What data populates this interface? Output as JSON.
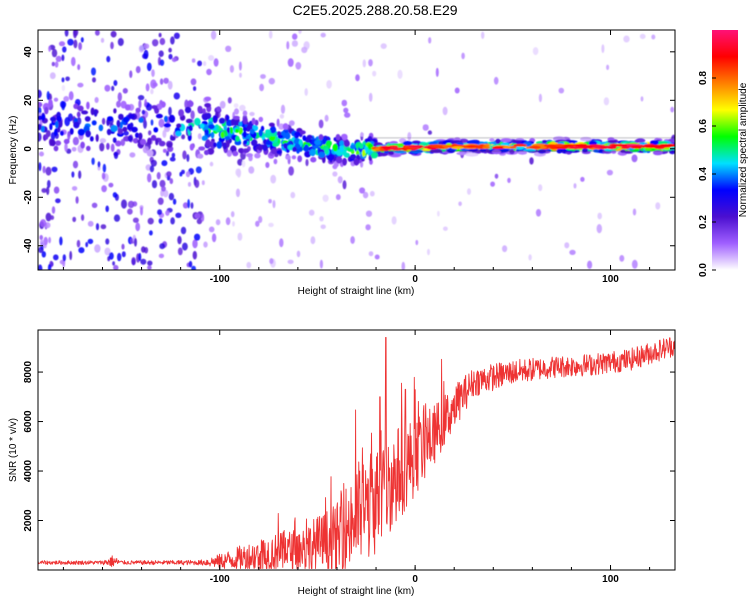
{
  "figure_title": "C2E5.2025.288.20.58.E29",
  "chart_data": [
    {
      "type": "heatmap",
      "title": "C2E5.2025.288.20.58.E29",
      "xlabel": "Height of straight line (km)",
      "ylabel": "Frequency (Hz)",
      "xlim": [
        -193,
        133
      ],
      "ylim": [
        -50,
        49
      ],
      "xticks": [
        -100,
        0,
        100
      ],
      "yticks": [
        -40,
        -20,
        0,
        20,
        40
      ],
      "xtick_labels": [
        "-100",
        "0",
        "100"
      ],
      "ytick_labels": [
        "-40",
        "-20",
        "0",
        "20",
        "40"
      ],
      "colorbar": {
        "label": "Normalized spectral amplitude",
        "range": [
          0,
          1
        ],
        "ticks": [
          0.0,
          0.2,
          0.4,
          0.6,
          0.8
        ],
        "tick_labels": [
          "0.0",
          "0.2",
          "0.4",
          "0.6",
          "0.8"
        ],
        "colors": [
          "#ffffff",
          "#a060ff",
          "#4b0fd0",
          "#0000ff",
          "#00e0ff",
          "#00ff00",
          "#ffff00",
          "#ff7f00",
          "#ff0000",
          "#ff1177"
        ]
      },
      "ridge": [
        {
          "x": -160,
          "f": 9,
          "a": 0.35
        },
        {
          "x": -130,
          "f": 9,
          "a": 0.38
        },
        {
          "x": -110,
          "f": 9,
          "a": 0.45
        },
        {
          "x": -100,
          "f": 8,
          "a": 0.55
        },
        {
          "x": -90,
          "f": 6,
          "a": 0.55
        },
        {
          "x": -80,
          "f": 5,
          "a": 0.5
        },
        {
          "x": -65,
          "f": 3,
          "a": 0.5
        },
        {
          "x": -50,
          "f": 1,
          "a": 0.55
        },
        {
          "x": -35,
          "f": -1,
          "a": 0.55
        },
        {
          "x": -20,
          "f": 0,
          "a": 0.75
        },
        {
          "x": 0,
          "f": 0.5,
          "a": 0.85
        },
        {
          "x": 20,
          "f": 1,
          "a": 0.7
        },
        {
          "x": 50,
          "f": 1,
          "a": 0.75
        },
        {
          "x": 80,
          "f": 1,
          "a": 0.8
        },
        {
          "x": 110,
          "f": 1,
          "a": 0.85
        },
        {
          "x": 133,
          "f": 1,
          "a": 0.8
        }
      ]
    },
    {
      "type": "line",
      "xlabel": "Height of straight line (km)",
      "ylabel": "SNR (10 * v/v)",
      "xlim": [
        -193,
        133
      ],
      "ylim": [
        0,
        9700
      ],
      "xticks": [
        -100,
        0,
        100
      ],
      "yticks": [
        2000,
        4000,
        6000,
        8000
      ],
      "xtick_labels": [
        "-100",
        "0",
        "100"
      ],
      "ytick_labels": [
        "2000",
        "4000",
        "6000",
        "8000"
      ],
      "series": [
        {
          "name": "SNR",
          "color": "#ee3333",
          "envelope": [
            {
              "x": -193,
              "y": 300,
              "n": 80
            },
            {
              "x": -160,
              "y": 300,
              "n": 80
            },
            {
              "x": -155,
              "y": 350,
              "n": 250
            },
            {
              "x": -150,
              "y": 300,
              "n": 80
            },
            {
              "x": -110,
              "y": 300,
              "n": 100
            },
            {
              "x": -100,
              "y": 350,
              "n": 300
            },
            {
              "x": -80,
              "y": 600,
              "n": 700
            },
            {
              "x": -60,
              "y": 800,
              "n": 900
            },
            {
              "x": -40,
              "y": 1200,
              "n": 1500
            },
            {
              "x": -30,
              "y": 2200,
              "n": 2200
            },
            {
              "x": -20,
              "y": 2800,
              "n": 2200
            },
            {
              "x": -10,
              "y": 3800,
              "n": 2000
            },
            {
              "x": 0,
              "y": 4600,
              "n": 1600
            },
            {
              "x": 10,
              "y": 5500,
              "n": 1200
            },
            {
              "x": 20,
              "y": 6600,
              "n": 900
            },
            {
              "x": 30,
              "y": 7600,
              "n": 600
            },
            {
              "x": 50,
              "y": 8000,
              "n": 500
            },
            {
              "x": 70,
              "y": 8200,
              "n": 450
            },
            {
              "x": 90,
              "y": 8300,
              "n": 450
            },
            {
              "x": 110,
              "y": 8500,
              "n": 450
            },
            {
              "x": 133,
              "y": 9100,
              "n": 450
            }
          ],
          "peaks": [
            {
              "x": -15,
              "y": 9400
            },
            {
              "x": -18,
              "y": 7000
            },
            {
              "x": -5,
              "y": 7300
            }
          ]
        }
      ]
    }
  ]
}
